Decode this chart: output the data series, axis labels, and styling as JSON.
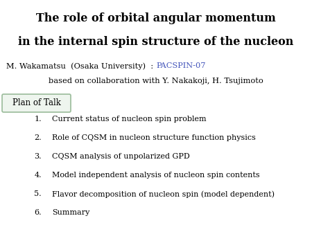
{
  "title_line1": "The role of orbital angular momentum",
  "title_line2": "in the internal spin structure of the nucleon",
  "author_line": "M. Wakamatsu  (Osaka University)  : ",
  "conference": "PACSPIN-07",
  "collab_line": "based on collaboration with Y. Nakakoji, H. Tsujimoto",
  "plan_label": "Plan of Talk",
  "items": [
    "Current status of nucleon spin problem",
    "Role of CQSM in nucleon structure function physics",
    "CQSM analysis of unpolarized GPD",
    "Model independent analysis of nucleon spin contents",
    "Flavor decomposition of nucleon spin (model dependent)",
    "Summary"
  ],
  "bg_color": "#ffffff",
  "title_color": "#000000",
  "author_color": "#000000",
  "conference_color": "#4455bb",
  "item_color": "#000000",
  "box_edge_color": "#99bb99",
  "box_face_color": "#eef5ee",
  "title_fontsize": 11.5,
  "author_fontsize": 8.2,
  "item_fontsize": 8.0,
  "plan_fontsize": 8.5
}
